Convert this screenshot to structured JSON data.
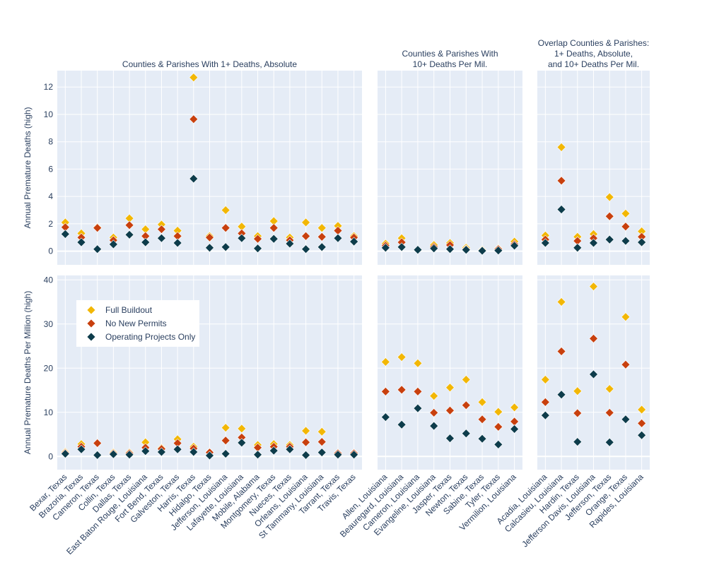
{
  "chart_data": {
    "type": "scatter",
    "marker": "diamond",
    "background_color": "#e5ecf6",
    "grid": true,
    "legend": {
      "placement": "lower-left panel, upper-left",
      "entries": [
        "Full Buildout",
        "No New Permits",
        "Operating Projects Only"
      ]
    },
    "series_colors": {
      "Full Buildout": "#f2b705",
      "No New Permits": "#c8400e",
      "Operating Projects Only": "#0d3c4b"
    },
    "rows": [
      {
        "ylabel": "Annual Premature Deaths (high)",
        "ylim": [
          -1,
          13.2
        ],
        "ticks": [
          "0",
          "2",
          "4",
          "6",
          "8",
          "10",
          "12"
        ]
      },
      {
        "ylabel": "Annual Premature Deaths Per Million (high)",
        "ylim": [
          -3,
          41
        ],
        "ticks": [
          "0",
          "10",
          "20",
          "30",
          "40"
        ]
      }
    ],
    "panels": [
      {
        "title_lines": [
          "Counties & Parishes With 1+ Deaths, Absolute"
        ],
        "categories": [
          "Bexar, Texas",
          "Brazoria, Texas",
          "Cameron, Texas",
          "Collin, Texas",
          "Dallas, Texas",
          "East Baton Rouge, Louisiana",
          "Fort Bend, Texas",
          "Galveston, Texas",
          "Harris, Texas",
          "Hidalgo, Texas",
          "Jefferson, Louisiana",
          "Lafayette, Louisiana",
          "Mobile, Alabama",
          "Montgomery, Texas",
          "Nueces, Texas",
          "Orleans, Louisiana",
          "St Tammany, Louisiana",
          "Tarrant, Texas",
          "Travis, Texas"
        ],
        "series": [
          {
            "name": "Full Buildout",
            "deaths": [
              2.1,
              1.3,
              1.75,
              1.0,
              2.4,
              1.6,
              1.95,
              1.5,
              12.7,
              1.1,
              3.0,
              1.8,
              1.1,
              2.2,
              1.0,
              2.1,
              1.7,
              1.85,
              1.1
            ],
            "per_million": [
              1.0,
              2.8,
              3.0,
              0.9,
              0.9,
              3.2,
              1.9,
              3.9,
              2.2,
              1.0,
              6.5,
              6.3,
              2.6,
              2.8,
              2.6,
              5.8,
              5.6,
              0.8,
              0.8
            ]
          },
          {
            "name": "No New Permits",
            "deaths": [
              1.75,
              1.0,
              1.7,
              0.8,
              1.9,
              1.1,
              1.6,
              1.1,
              9.65,
              1.0,
              1.7,
              1.3,
              0.9,
              1.7,
              0.8,
              1.1,
              1.05,
              1.5,
              1.0
            ],
            "per_million": [
              0.8,
              2.2,
              3.0,
              0.7,
              0.7,
              2.0,
              1.7,
              3.0,
              1.8,
              0.9,
              3.6,
              4.3,
              2.0,
              2.2,
              2.2,
              3.2,
              3.3,
              0.7,
              0.7
            ]
          },
          {
            "name": "Operating Projects Only",
            "deaths": [
              1.25,
              0.65,
              0.15,
              0.5,
              1.2,
              0.65,
              0.95,
              0.6,
              5.3,
              0.25,
              0.3,
              0.95,
              0.2,
              0.9,
              0.55,
              0.15,
              0.3,
              0.95,
              0.7
            ],
            "per_million": [
              0.6,
              1.6,
              0.3,
              0.5,
              0.4,
              1.2,
              1.0,
              1.6,
              1.0,
              0.2,
              0.6,
              3.1,
              0.4,
              1.3,
              1.6,
              0.3,
              0.9,
              0.4,
              0.4
            ]
          }
        ]
      },
      {
        "title_lines": [
          "Counties & Parishes With",
          "10+ Deaths Per Mil."
        ],
        "categories": [
          "Allen, Louisiana",
          "Beauregard, Louisiana",
          "Cameron, Louisiana",
          "Evangeline, Louisiana",
          "Jasper, Texas",
          "Newton, Texas",
          "Sabine, Texas",
          "Tyler, Texas",
          "Vermilion, Louisiana"
        ],
        "series": [
          {
            "name": "Full Buildout",
            "deaths": [
              0.55,
              0.95,
              0.1,
              0.45,
              0.6,
              0.25,
              0.1,
              0.2,
              0.7
            ],
            "per_million": [
              21.4,
              22.5,
              21.1,
              13.7,
              15.6,
              17.4,
              12.3,
              10.1,
              11.1
            ]
          },
          {
            "name": "No New Permits",
            "deaths": [
              0.4,
              0.65,
              0.1,
              0.3,
              0.45,
              0.15,
              0.05,
              0.15,
              0.5
            ],
            "per_million": [
              14.7,
              15.1,
              14.7,
              9.9,
              10.4,
              11.6,
              8.4,
              6.7,
              7.9
            ]
          },
          {
            "name": "Operating Projects Only",
            "deaths": [
              0.25,
              0.3,
              0.1,
              0.2,
              0.15,
              0.1,
              0.03,
              0.05,
              0.4
            ],
            "per_million": [
              8.9,
              7.2,
              10.9,
              6.9,
              4.1,
              5.2,
              4.0,
              2.7,
              6.2
            ]
          }
        ]
      },
      {
        "title_lines": [
          "Overlap Counties & Parishes:",
          "1+ Deaths, Absolute,",
          "and 10+ Deaths Per Mil."
        ],
        "categories": [
          "Acadia, Louisiana",
          "Calcasieu, Louisiana",
          "Hardin, Texas",
          "Jefferson Davis, Louisiana",
          "Jefferson, Texas",
          "Orange, Texas",
          "Rapides, Louisiana"
        ],
        "series": [
          {
            "name": "Full Buildout",
            "deaths": [
              1.15,
              7.6,
              1.05,
              1.25,
              3.95,
              2.75,
              1.45
            ],
            "per_million": [
              17.4,
              35.0,
              14.8,
              38.5,
              15.3,
              31.6,
              10.6
            ]
          },
          {
            "name": "No New Permits",
            "deaths": [
              0.85,
              5.15,
              0.75,
              0.95,
              2.55,
              1.8,
              1.05
            ],
            "per_million": [
              12.3,
              23.8,
              9.8,
              26.7,
              9.9,
              20.8,
              7.5
            ]
          },
          {
            "name": "Operating Projects Only",
            "deaths": [
              0.6,
              3.05,
              0.25,
              0.6,
              0.85,
              0.75,
              0.65
            ],
            "per_million": [
              9.3,
              14.0,
              3.3,
              18.6,
              3.2,
              8.4,
              4.8
            ]
          }
        ]
      }
    ]
  }
}
